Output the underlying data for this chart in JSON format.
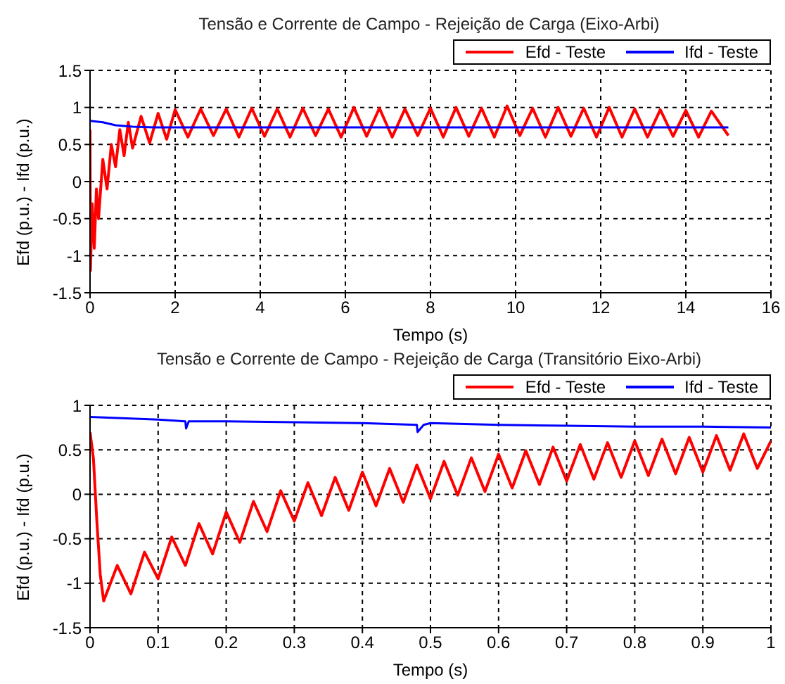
{
  "chart_data": [
    {
      "type": "line",
      "title": "Tensão e Corrente de Campo - Rejeição de Carga (Eixo-Arbi)",
      "xlabel": "Tempo (s)",
      "ylabel": "Efd (p.u.) - Ifd (p.u.)",
      "xlim": [
        0,
        16
      ],
      "xticks": [
        0,
        2,
        4,
        6,
        8,
        10,
        12,
        14,
        16
      ],
      "ylim": [
        -1.5,
        1.5
      ],
      "yticks": [
        -1.5,
        -1,
        -0.5,
        0,
        0.5,
        1,
        1.5
      ],
      "grid": true,
      "legend": "top right",
      "series": [
        {
          "name": "Efd - Teste",
          "color": "#ff0000",
          "x": [
            0,
            0.01,
            0.05,
            0.1,
            0.15,
            0.2,
            0.3,
            0.4,
            0.5,
            0.6,
            0.7,
            0.8,
            0.9,
            1.0,
            1.2,
            1.4,
            1.6,
            1.8,
            2.0,
            2.3,
            2.6,
            2.9,
            3.2,
            3.5,
            3.8,
            4.1,
            4.4,
            4.7,
            5.0,
            5.3,
            5.6,
            5.9,
            6.2,
            6.5,
            6.8,
            7.1,
            7.4,
            7.7,
            8.0,
            8.3,
            8.6,
            8.9,
            9.2,
            9.5,
            9.8,
            10.1,
            10.4,
            10.7,
            11.0,
            11.3,
            11.6,
            11.9,
            12.2,
            12.5,
            12.8,
            13.1,
            13.4,
            13.7,
            14.0,
            14.3,
            14.6,
            15.0
          ],
          "values": [
            0.7,
            -1.2,
            -0.3,
            -0.9,
            -0.1,
            -0.5,
            0.3,
            -0.1,
            0.5,
            0.2,
            0.7,
            0.35,
            0.8,
            0.45,
            0.88,
            0.52,
            0.92,
            0.57,
            0.97,
            0.6,
            0.98,
            0.62,
            0.98,
            0.6,
            0.99,
            0.61,
            0.98,
            0.6,
            0.99,
            0.62,
            0.98,
            0.6,
            1.0,
            0.61,
            0.99,
            0.6,
            0.98,
            0.62,
            0.99,
            0.6,
            1.0,
            0.61,
            0.99,
            0.6,
            1.02,
            0.62,
            0.99,
            0.6,
            1.0,
            0.61,
            0.99,
            0.6,
            1.0,
            0.6,
            0.98,
            0.6,
            0.97,
            0.61,
            0.96,
            0.6,
            0.95,
            0.62
          ]
        },
        {
          "name": "Ifd - Teste",
          "color": "#0000ff",
          "x": [
            0,
            0.3,
            0.6,
            1.0,
            1.5,
            2,
            4,
            6,
            8,
            10,
            12,
            14,
            15
          ],
          "values": [
            0.82,
            0.8,
            0.76,
            0.74,
            0.73,
            0.73,
            0.73,
            0.73,
            0.73,
            0.73,
            0.73,
            0.73,
            0.73
          ]
        }
      ]
    },
    {
      "type": "line",
      "title": "Tensão e Corrente de Campo - Rejeição de Carga (Transitório Eixo-Arbi)",
      "xlabel": "Tempo (s)",
      "ylabel": "Efd (p.u.) - Ifd (p.u.)",
      "xlim": [
        0,
        1
      ],
      "xticks": [
        0,
        0.1,
        0.2,
        0.3,
        0.4,
        0.5,
        0.6,
        0.7,
        0.8,
        0.9,
        1
      ],
      "ylim": [
        -1.5,
        1
      ],
      "yticks": [
        -1.5,
        -1,
        -0.5,
        0,
        0.5,
        1
      ],
      "grid": true,
      "legend": "top right",
      "series": [
        {
          "name": "Efd - Teste",
          "color": "#ff0000",
          "x": [
            0,
            0.005,
            0.01,
            0.015,
            0.02,
            0.03,
            0.04,
            0.06,
            0.08,
            0.1,
            0.12,
            0.14,
            0.16,
            0.18,
            0.2,
            0.22,
            0.24,
            0.26,
            0.28,
            0.3,
            0.32,
            0.34,
            0.36,
            0.38,
            0.4,
            0.42,
            0.44,
            0.46,
            0.48,
            0.5,
            0.52,
            0.54,
            0.56,
            0.58,
            0.6,
            0.62,
            0.64,
            0.66,
            0.68,
            0.7,
            0.72,
            0.74,
            0.76,
            0.78,
            0.8,
            0.82,
            0.84,
            0.86,
            0.88,
            0.9,
            0.92,
            0.94,
            0.96,
            0.98,
            1.0
          ],
          "values": [
            0.7,
            0.4,
            -0.3,
            -0.9,
            -1.2,
            -1.0,
            -0.8,
            -1.12,
            -0.65,
            -0.95,
            -0.48,
            -0.8,
            -0.33,
            -0.67,
            -0.2,
            -0.54,
            -0.08,
            -0.42,
            0.04,
            -0.3,
            0.13,
            -0.24,
            0.19,
            -0.18,
            0.25,
            -0.13,
            0.29,
            -0.09,
            0.33,
            -0.05,
            0.37,
            -0.01,
            0.41,
            0.03,
            0.45,
            0.07,
            0.49,
            0.11,
            0.53,
            0.15,
            0.56,
            0.17,
            0.58,
            0.19,
            0.6,
            0.21,
            0.62,
            0.23,
            0.64,
            0.25,
            0.66,
            0.27,
            0.68,
            0.29,
            0.6
          ]
        },
        {
          "name": "Ifd - Teste",
          "color": "#0000ff",
          "x": [
            0,
            0.1,
            0.14,
            0.141,
            0.145,
            0.2,
            0.3,
            0.4,
            0.48,
            0.481,
            0.49,
            0.5,
            0.6,
            0.7,
            0.8,
            0.9,
            1.0
          ],
          "values": [
            0.87,
            0.84,
            0.82,
            0.74,
            0.82,
            0.82,
            0.81,
            0.8,
            0.78,
            0.7,
            0.78,
            0.8,
            0.78,
            0.77,
            0.76,
            0.76,
            0.75
          ]
        }
      ]
    }
  ]
}
